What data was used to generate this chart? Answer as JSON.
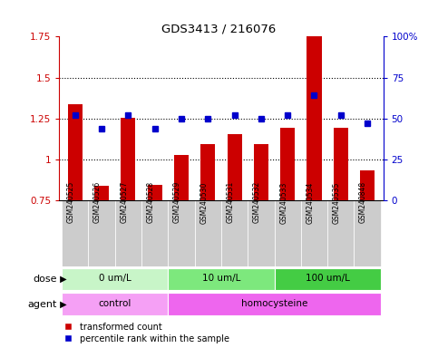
{
  "title": "GDS3413 / 216076",
  "samples": [
    "GSM240525",
    "GSM240526",
    "GSM240527",
    "GSM240528",
    "GSM240529",
    "GSM240530",
    "GSM240531",
    "GSM240532",
    "GSM240533",
    "GSM240534",
    "GSM240535",
    "GSM240848"
  ],
  "red_values": [
    1.335,
    0.84,
    1.255,
    0.845,
    1.025,
    1.095,
    1.155,
    1.095,
    1.195,
    1.845,
    1.195,
    0.935
  ],
  "blue_values": [
    52,
    44,
    52,
    44,
    50,
    50,
    52,
    50,
    52,
    64,
    52,
    47
  ],
  "ylim_left": [
    0.75,
    1.75
  ],
  "ylim_right": [
    0,
    100
  ],
  "yticks_left": [
    0.75,
    1.0,
    1.25,
    1.5,
    1.75
  ],
  "ytick_labels_left": [
    "0.75",
    "1",
    "1.25",
    "1.5",
    "1.75"
  ],
  "yticks_right": [
    0,
    25,
    50,
    75,
    100
  ],
  "ytick_labels_right": [
    "0",
    "25",
    "50",
    "75",
    "100%"
  ],
  "hlines": [
    1.0,
    1.25,
    1.5
  ],
  "dose_groups": [
    {
      "label": "0 um/L",
      "start": 0,
      "end": 4,
      "color": "#c8f5c8"
    },
    {
      "label": "10 um/L",
      "start": 4,
      "end": 8,
      "color": "#7de87d"
    },
    {
      "label": "100 um/L",
      "start": 8,
      "end": 12,
      "color": "#44cc44"
    }
  ],
  "agent_groups": [
    {
      "label": "control",
      "start": 0,
      "end": 4,
      "color": "#f5a0f5"
    },
    {
      "label": "homocysteine",
      "start": 4,
      "end": 12,
      "color": "#ee66ee"
    }
  ],
  "red_color": "#cc0000",
  "blue_color": "#0000cc",
  "bar_bottom": 0.75,
  "bar_width": 0.55,
  "sample_bg": "#cccccc",
  "bg_color": "#ffffff",
  "legend_red": "transformed count",
  "legend_blue": "percentile rank within the sample",
  "left_label": "dose",
  "left_label2": "agent"
}
